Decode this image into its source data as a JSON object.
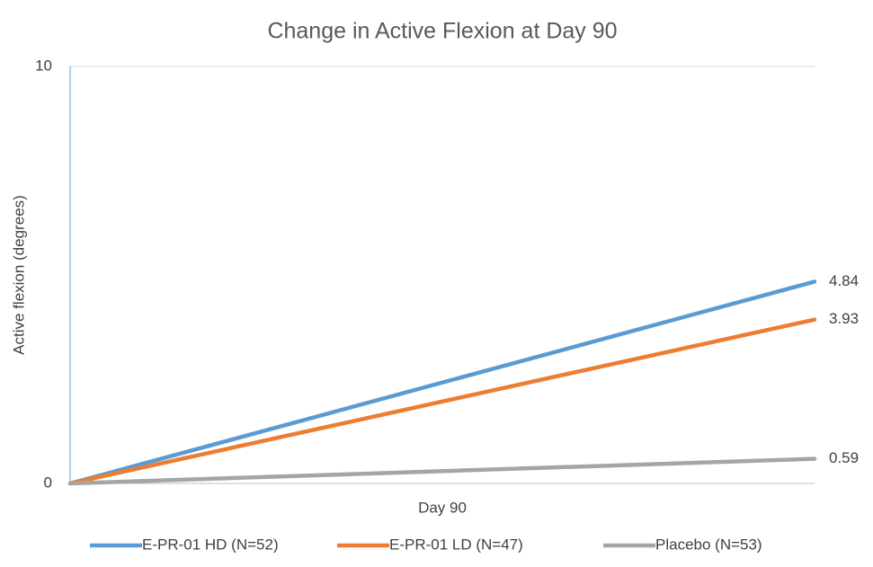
{
  "chart_data": {
    "type": "line",
    "title": "Change in Active Flexion at Day 90",
    "y_label": "Active flexion (degrees)",
    "x_label": "Day 90",
    "categories": [
      null,
      null
    ],
    "series": [
      {
        "name": "E-PR-01 HD (N=52)",
        "color": "#5b9bd5",
        "values": [
          0,
          4.84
        ]
      },
      {
        "name": "E-PR-01 LD (N=47)",
        "color": "#ed7d31",
        "values": [
          0,
          3.93
        ]
      },
      {
        "name": "Placebo (N=53)",
        "color": "#a5a5a5",
        "values": [
          0,
          0.59
        ]
      }
    ],
    "ylim": [
      0,
      10
    ],
    "yticks": [
      0,
      10
    ],
    "grid": true,
    "legend": "bottom"
  }
}
